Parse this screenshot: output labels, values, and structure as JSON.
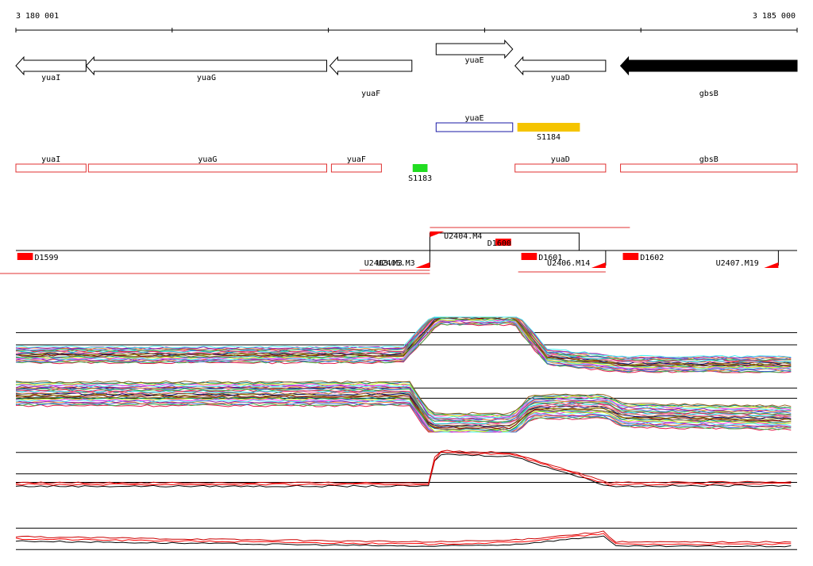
{
  "ruler": {
    "start_label": "3 180 001",
    "end_label": "3 185 000",
    "start_bp": 3180001,
    "end_bp": 3185000
  },
  "genes": [
    {
      "name": "yuaI",
      "start": 3180001,
      "end": 3180450,
      "strand": "-",
      "style": "open"
    },
    {
      "name": "yuaG",
      "start": 3180450,
      "end": 3181990,
      "strand": "-",
      "style": "open"
    },
    {
      "name": "yuaF",
      "start": 3182010,
      "end": 3182535,
      "strand": "-",
      "style": "open"
    },
    {
      "name": "yuaE",
      "start": 3182690,
      "end": 3183180,
      "strand": "+",
      "style": "open"
    },
    {
      "name": "yuaD",
      "start": 3183195,
      "end": 3183775,
      "strand": "-",
      "style": "open"
    },
    {
      "name": "gbsB",
      "start": 3183870,
      "end": 3185000,
      "strand": "-",
      "style": "filled"
    }
  ],
  "blue_features": [
    {
      "name": "yuaE",
      "start": 3182690,
      "end": 3183180,
      "color": "#1a1aa6"
    }
  ],
  "orange_features": [
    {
      "name": "S1184",
      "start": 3183210,
      "end": 3183610,
      "color": "#f5c400"
    }
  ],
  "red_features": [
    {
      "name": "yuaI",
      "start": 3180001,
      "end": 3180450
    },
    {
      "name": "yuaG",
      "start": 3180465,
      "end": 3181990
    },
    {
      "name": "yuaF",
      "start": 3182020,
      "end": 3182340
    },
    {
      "name": "yuaD",
      "start": 3183195,
      "end": 3183775
    },
    {
      "name": "gbsB",
      "start": 3183870,
      "end": 3185000
    }
  ],
  "green_features": [
    {
      "name": "S1183",
      "start": 3182540,
      "end": 3182635,
      "color": "#22dd22"
    }
  ],
  "segments": [
    {
      "name": "D1599",
      "start": 3180010,
      "end": 3180110,
      "label_offset": 0
    },
    {
      "name": "D1600",
      "start": 3183070,
      "end": 3183170,
      "label_offset": -32
    },
    {
      "name": "D1601",
      "start": 3183235,
      "end": 3183335,
      "label_offset": 0
    },
    {
      "name": "D1602",
      "start": 3183885,
      "end": 3183985,
      "label_offset": 0
    }
  ],
  "transcripts": [
    {
      "name": "U2404.M4",
      "start": 3182650,
      "end": 3183605,
      "label_x_bp": 3182740
    },
    {
      "name": "U2403.M3",
      "start": 3179940,
      "end": 3182650,
      "label_x_bp": 3182230
    },
    {
      "name": "U2405.M3",
      "start": 3182290,
      "end": 3182650,
      "label_x_bp": 3182310
    },
    {
      "name": "U2406.M14",
      "start": 3183215,
      "end": 3183775,
      "label_x_bp": 3183400
    },
    {
      "name": "U2407.M19",
      "start": 3184660,
      "end": 3184880,
      "label_x_bp": 3184480
    }
  ],
  "tracks": [
    {
      "name": "tiling-array-top",
      "colors": [
        "#e6194b",
        "#3cb44b",
        "#4363d8",
        "#f58231",
        "#911eb4",
        "#46f0f0",
        "#f032e6",
        "#bcf60c",
        "#008080",
        "#9a6324",
        "#800000",
        "#808000",
        "#000075",
        "#aa6e28",
        "#ff69b4",
        "#00ced1"
      ],
      "n": 22,
      "profile": [
        [
          3180001,
          0.32
        ],
        [
          3182480,
          0.32
        ],
        [
          3182700,
          1.0
        ],
        [
          3183190,
          1.0
        ],
        [
          3183400,
          0.28
        ],
        [
          3183900,
          0.15
        ],
        [
          3185000,
          0.15
        ]
      ],
      "spread": 0.28,
      "ref": [
        0.5,
        0.72
      ]
    },
    {
      "name": "tiling-array-bottom",
      "colors": [
        "#e6194b",
        "#3cb44b",
        "#4363d8",
        "#f58231",
        "#911eb4",
        "#46f0f0",
        "#f032e6",
        "#bcf60c",
        "#008080",
        "#9a6324",
        "#800000",
        "#808000",
        "#000075",
        "#aa6e28",
        "#ff69b4",
        "#00ced1"
      ],
      "n": 26,
      "profile": [
        [
          3180001,
          0.68
        ],
        [
          3182520,
          0.68
        ],
        [
          3182660,
          0.12
        ],
        [
          3183180,
          0.12
        ],
        [
          3183300,
          0.45
        ],
        [
          3183780,
          0.45
        ],
        [
          3183880,
          0.3
        ],
        [
          3185000,
          0.25
        ]
      ],
      "spread": 0.42,
      "ref": [
        0.6,
        0.78
      ]
    },
    {
      "name": "condition-red-black",
      "colors": [
        "#000000",
        "#ff0000",
        "#cc0000"
      ],
      "n": 3,
      "profile": [
        [
          3180001,
          0.2
        ],
        [
          3182650,
          0.2
        ],
        [
          3182690,
          0.95
        ],
        [
          3183180,
          0.9
        ],
        [
          3183800,
          0.2
        ],
        [
          3185000,
          0.22
        ]
      ],
      "spread": 0.08,
      "ref": [
        0.25,
        0.45,
        0.95
      ]
    },
    {
      "name": "condition-black-red-2",
      "colors": [
        "#000000",
        "#ff0000",
        "#cc0000"
      ],
      "n": 3,
      "profile": [
        [
          3180001,
          0.45
        ],
        [
          3182650,
          0.3
        ],
        [
          3183180,
          0.35
        ],
        [
          3183780,
          0.6
        ],
        [
          3183820,
          0.3
        ],
        [
          3185000,
          0.3
        ]
      ],
      "spread": 0.12,
      "ref": [
        0.15,
        0.75
      ]
    }
  ]
}
